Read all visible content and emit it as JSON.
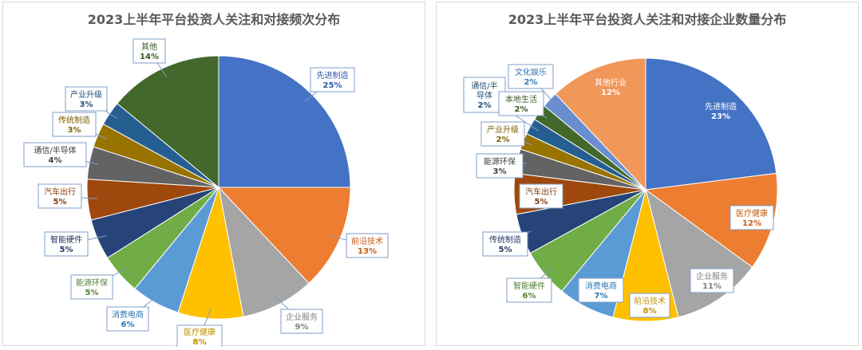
{
  "chart_data": [
    {
      "type": "pie",
      "title": "2023上半年平台投资人关注和对接频次分布",
      "slices": [
        {
          "label": "先进制造",
          "value": 25,
          "pct": "25%",
          "color": "#4472c4",
          "label_color": "#2e5ba8"
        },
        {
          "label": "前沿技术",
          "value": 13,
          "pct": "13%",
          "color": "#ed7d31",
          "label_color": "#c55a11"
        },
        {
          "label": "企业服务",
          "value": 9,
          "pct": "9%",
          "color": "#a5a5a5",
          "label_color": "#7f7f7f"
        },
        {
          "label": "医疗健康",
          "value": 8,
          "pct": "8%",
          "color": "#ffc000",
          "label_color": "#bf9000"
        },
        {
          "label": "消费电商",
          "value": 6,
          "pct": "6%",
          "color": "#5b9bd5",
          "label_color": "#2e75b6"
        },
        {
          "label": "能源环保",
          "value": 5,
          "pct": "5%",
          "color": "#70ad47",
          "label_color": "#548235"
        },
        {
          "label": "智能硬件",
          "value": 5,
          "pct": "5%",
          "color": "#264478",
          "label_color": "#203864"
        },
        {
          "label": "汽车出行",
          "value": 5,
          "pct": "5%",
          "color": "#9e480e",
          "label_color": "#843c0c"
        },
        {
          "label": "通信/半导体",
          "value": 4,
          "pct": "4%",
          "color": "#636363",
          "label_color": "#404040"
        },
        {
          "label": "传统制造",
          "value": 3,
          "pct": "3%",
          "color": "#997300",
          "label_color": "#7f6000"
        },
        {
          "label": "产业升级",
          "value": 3,
          "pct": "3%",
          "color": "#255e91",
          "label_color": "#1f4e79"
        },
        {
          "label": "其他",
          "value": 14,
          "pct": "14%",
          "color": "#43682b",
          "label_color": "#375623"
        }
      ]
    },
    {
      "type": "pie",
      "title": "2023上半年平台投资人关注和对接企业数量分布",
      "slices": [
        {
          "label": "先进制造",
          "value": 23,
          "pct": "23%",
          "color": "#4472c4",
          "label_color": "#ffffff"
        },
        {
          "label": "医疗健康",
          "value": 12,
          "pct": "12%",
          "color": "#ed7d31",
          "label_color": "#c55a11"
        },
        {
          "label": "企业服务",
          "value": 11,
          "pct": "11%",
          "color": "#a5a5a5",
          "label_color": "#7f7f7f"
        },
        {
          "label": "前沿技术",
          "value": 8,
          "pct": "8%",
          "color": "#ffc000",
          "label_color": "#bf9000"
        },
        {
          "label": "消费电商",
          "value": 7,
          "pct": "7%",
          "color": "#5b9bd5",
          "label_color": "#2e75b6"
        },
        {
          "label": "智能硬件",
          "value": 6,
          "pct": "6%",
          "color": "#70ad47",
          "label_color": "#548235"
        },
        {
          "label": "传统制造",
          "value": 5,
          "pct": "5%",
          "color": "#264478",
          "label_color": "#203864"
        },
        {
          "label": "汽车出行",
          "value": 5,
          "pct": "5%",
          "color": "#9e480e",
          "label_color": "#843c0c"
        },
        {
          "label": "能源环保",
          "value": 3,
          "pct": "3%",
          "color": "#636363",
          "label_color": "#404040"
        },
        {
          "label": "产业升级",
          "value": 2,
          "pct": "2%",
          "color": "#997300",
          "label_color": "#7f6000"
        },
        {
          "label": "通信/半导体",
          "value": 2,
          "pct": "2%",
          "color": "#255e91",
          "label_color": "#1f4e79"
        },
        {
          "label": "本地生活",
          "value": 2,
          "pct": "2%",
          "color": "#43682b",
          "label_color": "#375623"
        },
        {
          "label": "文化娱乐",
          "value": 2,
          "pct": "2%",
          "color": "#698ed0",
          "label_color": "#2e75b6"
        },
        {
          "label": "其他行业",
          "value": 12,
          "pct": "12%",
          "color": "#f1975a",
          "label_color": "#ffffff"
        }
      ]
    }
  ]
}
